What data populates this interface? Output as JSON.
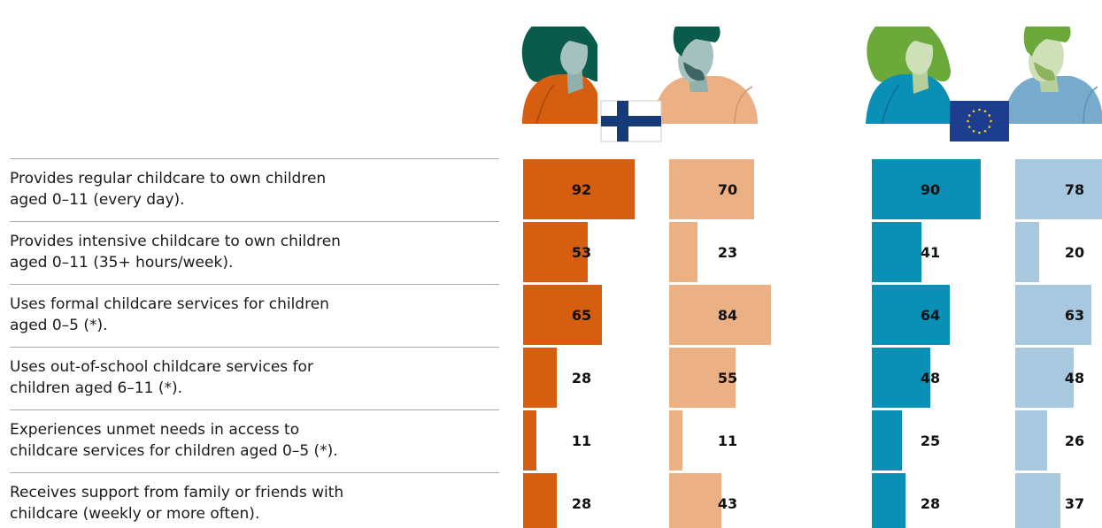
{
  "colors": {
    "fi_women": "#d55e11",
    "fi_men": "#ecb085",
    "eu_women": "#0a8fb6",
    "eu_men": "#a7c8de",
    "divider": "#aaaaaa",
    "fi_flag_cross": "#173a78",
    "eu_flag_bg": "#1d3d8f",
    "eu_flag_stars": "#f1d21d"
  },
  "icons": {
    "fi_woman": "woman-figure-icon",
    "fi_man": "man-figure-icon",
    "fi_flag": "finland-flag-icon",
    "eu_woman": "woman-figure-icon",
    "eu_man": "man-figure-icon",
    "eu_flag": "eu-flag-icon"
  },
  "chart_data": {
    "type": "bar",
    "orientation": "horizontal",
    "title": "",
    "xlim": [
      0,
      100
    ],
    "categories": [
      [
        "Provides regular childcare to own children",
        "aged 0–11 (every day)."
      ],
      [
        "Provides intensive childcare to own children",
        "aged 0–11 (35+ hours/week)."
      ],
      [
        "Uses formal childcare services for children",
        "aged 0–5 (*)."
      ],
      [
        "Uses out-of-school childcare services for",
        "children aged 6–11 (*)."
      ],
      [
        "Experiences unmet needs in access to",
        "childcare services for children aged 0–5 (*)."
      ],
      [
        "Receives support from family or friends with",
        "childcare (weekly or more often)."
      ]
    ],
    "series": [
      {
        "key": "fi_women",
        "values": [
          92,
          53,
          65,
          28,
          11,
          28
        ]
      },
      {
        "key": "fi_men",
        "values": [
          70,
          23,
          84,
          55,
          11,
          43
        ]
      },
      {
        "key": "eu_women",
        "values": [
          90,
          41,
          64,
          48,
          25,
          28
        ]
      },
      {
        "key": "eu_men",
        "values": [
          78,
          20,
          63,
          48,
          26,
          37
        ]
      }
    ]
  }
}
